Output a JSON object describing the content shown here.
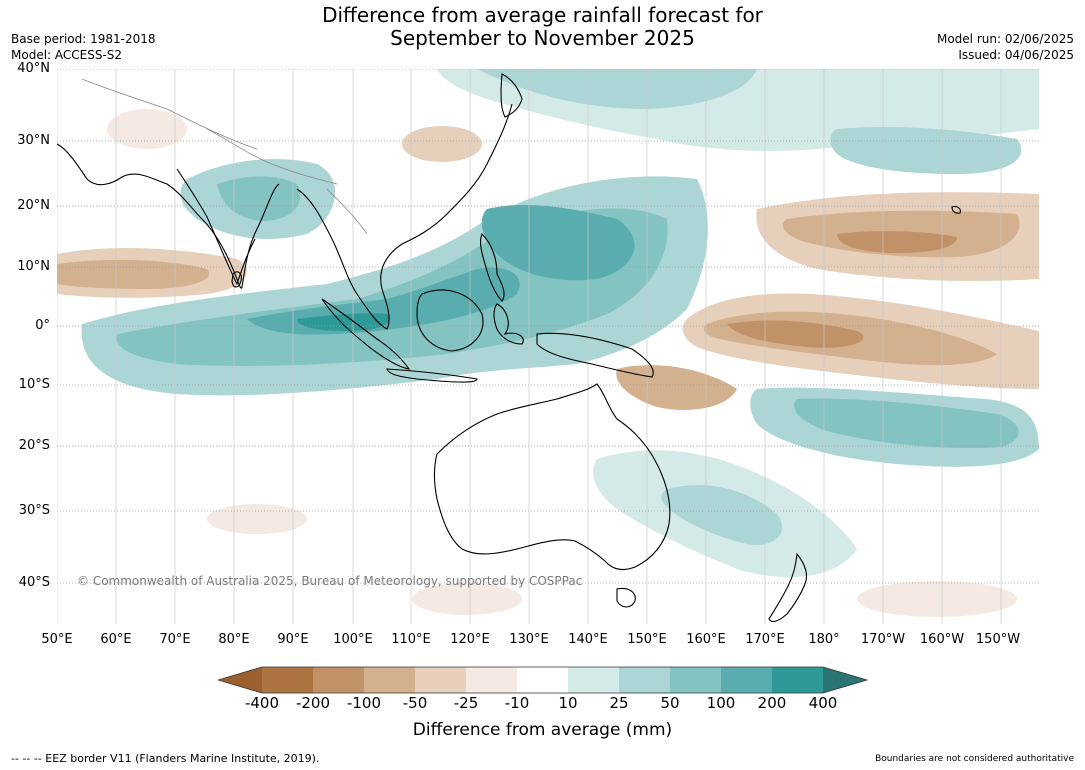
{
  "title": {
    "line1": "Difference from average rainfall forecast for",
    "line2": "September to November 2025"
  },
  "meta_left": {
    "base_period": "Base period: 1981-2018",
    "model": "Model: ACCESS-S2"
  },
  "meta_right": {
    "model_run": "Model run: 02/06/2025",
    "issued": "Issued: 04/06/2025"
  },
  "lat_labels": [
    "40°N",
    "30°N",
    "20°N",
    "10°N",
    "0°",
    "10°S",
    "20°S",
    "30°S",
    "40°S"
  ],
  "lon_labels": [
    "50°E",
    "60°E",
    "70°E",
    "80°E",
    "90°E",
    "100°E",
    "110°E",
    "120°E",
    "130°E",
    "140°E",
    "150°E",
    "160°E",
    "170°E",
    "180°",
    "170°W",
    "160°W",
    "150°W"
  ],
  "copyright": "© Commonwealth of Australia 2025, Bureau of Meteorology, supported by COSPPac",
  "colorbar": {
    "ticks": [
      "-400",
      "-200",
      "-100",
      "-50",
      "-25",
      "-10",
      "10",
      "25",
      "50",
      "100",
      "200",
      "400"
    ],
    "colors": [
      "#9c5f2f",
      "#ac7440",
      "#c19267",
      "#d3b08e",
      "#e6d0bc",
      "#f4eae3",
      "#ffffff",
      "#d4eae8",
      "#acd6d5",
      "#83c3c2",
      "#5aadae",
      "#2e9a98",
      "#2b7575"
    ],
    "label": "Difference from average (mm)"
  },
  "eez_note": "--  --  -- EEZ border V11 (Flanders Marine Institute, 2019).",
  "boundary_note": "Boundaries are not considered authoritative"
}
